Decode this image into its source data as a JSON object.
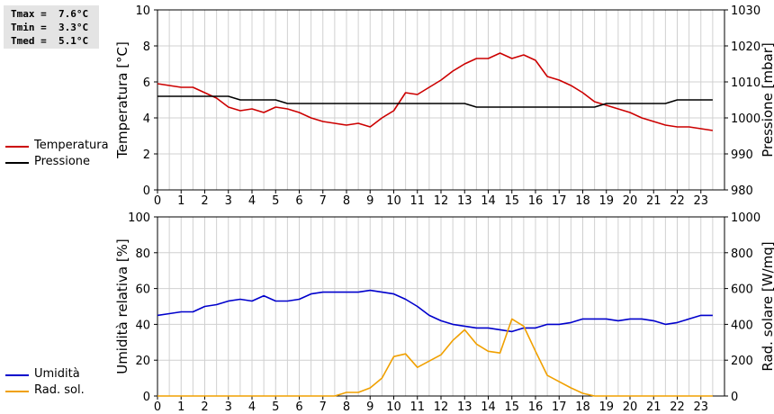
{
  "stats": {
    "tmax": "Tmax =  7.6°C",
    "tmin": "Tmin =  3.3°C",
    "tmed": "Tmed =  5.1°C"
  },
  "legend_top": [
    {
      "label": "Temperatura",
      "color": "#cc0000"
    },
    {
      "label": "Pressione",
      "color": "#000000"
    }
  ],
  "legend_bottom": [
    {
      "label": "Umidità",
      "color": "#0000cc"
    },
    {
      "label": "Rad. sol.",
      "color": "#f0a000"
    }
  ],
  "chart_data": [
    {
      "type": "line",
      "ylabel": "Temperatura [°C]",
      "y2label": "Pressione [mbar]",
      "ylim": [
        0,
        10
      ],
      "y2lim": [
        980,
        1030
      ],
      "yticks": [
        "0",
        "2",
        "4",
        "6",
        "8",
        "10"
      ],
      "y2ticks": [
        "980",
        "990",
        "1000",
        "1010",
        "1020",
        "1030"
      ],
      "xticks": [
        "0",
        "1",
        "2",
        "3",
        "4",
        "5",
        "6",
        "7",
        "8",
        "9",
        "10",
        "11",
        "12",
        "13",
        "14",
        "15",
        "16",
        "17",
        "18",
        "19",
        "20",
        "21",
        "22",
        "23"
      ],
      "grid": true,
      "series": [
        {
          "name": "Temperatura",
          "axis": "left",
          "color": "#cc0000",
          "x": [
            0,
            0.5,
            1,
            1.5,
            2,
            2.5,
            3,
            3.5,
            4,
            4.5,
            5,
            5.5,
            6,
            6.5,
            7,
            7.5,
            8,
            8.5,
            9,
            9.5,
            10,
            10.5,
            11,
            11.5,
            12,
            12.5,
            13,
            13.5,
            14,
            14.5,
            15,
            15.5,
            16,
            16.5,
            17,
            17.5,
            18,
            18.5,
            19,
            19.5,
            20,
            20.5,
            21,
            21.5,
            22,
            22.5,
            23,
            23.5
          ],
          "y": [
            5.9,
            5.8,
            5.7,
            5.7,
            5.4,
            5.1,
            4.6,
            4.4,
            4.5,
            4.3,
            4.6,
            4.5,
            4.3,
            4.0,
            3.8,
            3.7,
            3.6,
            3.7,
            3.5,
            4.0,
            4.4,
            5.4,
            5.3,
            5.7,
            6.1,
            6.6,
            7.0,
            7.3,
            7.3,
            7.6,
            7.3,
            7.5,
            7.2,
            6.3,
            6.1,
            5.8,
            5.4,
            4.9,
            4.7,
            4.5,
            4.3,
            4.0,
            3.8,
            3.6,
            3.5,
            3.5,
            3.4,
            3.3
          ]
        },
        {
          "name": "Pressione",
          "axis": "right",
          "color": "#000000",
          "x": [
            0,
            1,
            2,
            2.5,
            3,
            3.5,
            4,
            4.5,
            5,
            5.5,
            6,
            7,
            8,
            9,
            10,
            11,
            12,
            13,
            13.5,
            14,
            15,
            16,
            17,
            18,
            18.5,
            19,
            20,
            21,
            21.5,
            22,
            23,
            23.5
          ],
          "y": [
            1006,
            1006,
            1006,
            1006,
            1006,
            1005,
            1005,
            1005,
            1005,
            1004,
            1004,
            1004,
            1004,
            1004,
            1004,
            1004,
            1004,
            1004,
            1003,
            1003,
            1003,
            1003,
            1003,
            1003,
            1003,
            1004,
            1004,
            1004,
            1004,
            1005,
            1005,
            1005
          ]
        }
      ]
    },
    {
      "type": "line",
      "ylabel": "Umidità relativa [%]",
      "y2label": "Rad. solare [W/mq]",
      "ylim": [
        0,
        100
      ],
      "y2lim": [
        0,
        1000
      ],
      "yticks": [
        "0",
        "20",
        "40",
        "60",
        "80",
        "100"
      ],
      "y2ticks": [
        "0",
        "200",
        "400",
        "600",
        "800",
        "1000"
      ],
      "xticks": [
        "0",
        "1",
        "2",
        "3",
        "4",
        "5",
        "6",
        "7",
        "8",
        "9",
        "10",
        "11",
        "12",
        "13",
        "14",
        "15",
        "16",
        "17",
        "18",
        "19",
        "20",
        "21",
        "22",
        "23"
      ],
      "grid": true,
      "series": [
        {
          "name": "Umidità",
          "axis": "left",
          "color": "#0000cc",
          "x": [
            0,
            0.5,
            1,
            1.5,
            2,
            2.5,
            3,
            3.5,
            4,
            4.5,
            5,
            5.5,
            6,
            6.5,
            7,
            7.5,
            8,
            8.5,
            9,
            9.5,
            10,
            10.5,
            11,
            11.5,
            12,
            12.5,
            13,
            13.5,
            14,
            14.5,
            15,
            15.5,
            16,
            16.5,
            17,
            17.5,
            18,
            18.5,
            19,
            19.5,
            20,
            20.5,
            21,
            21.5,
            22,
            22.5,
            23,
            23.5
          ],
          "y": [
            45,
            46,
            47,
            47,
            50,
            51,
            53,
            54,
            53,
            56,
            53,
            53,
            54,
            57,
            58,
            58,
            58,
            58,
            59,
            58,
            57,
            54,
            50,
            45,
            42,
            40,
            39,
            38,
            38,
            37,
            36,
            38,
            38,
            40,
            40,
            41,
            43,
            43,
            43,
            42,
            43,
            43,
            42,
            40,
            41,
            43,
            45,
            45
          ]
        },
        {
          "name": "Rad. sol.",
          "axis": "right",
          "color": "#f0a000",
          "x": [
            0,
            1,
            2,
            3,
            4,
            5,
            6,
            7,
            7.5,
            8,
            8.5,
            9,
            9.5,
            10,
            10.5,
            11,
            11.5,
            12,
            12.5,
            13,
            13.5,
            14,
            14.5,
            15,
            15.5,
            16,
            16.5,
            17,
            17.5,
            18,
            18.5,
            19,
            20,
            21,
            22,
            23,
            23.5
          ],
          "y": [
            0,
            0,
            0,
            0,
            0,
            0,
            0,
            0,
            0,
            20,
            20,
            45,
            100,
            220,
            235,
            160,
            195,
            230,
            310,
            370,
            290,
            250,
            240,
            430,
            390,
            250,
            115,
            80,
            45,
            15,
            0,
            0,
            0,
            0,
            0,
            0,
            0
          ]
        }
      ]
    }
  ]
}
